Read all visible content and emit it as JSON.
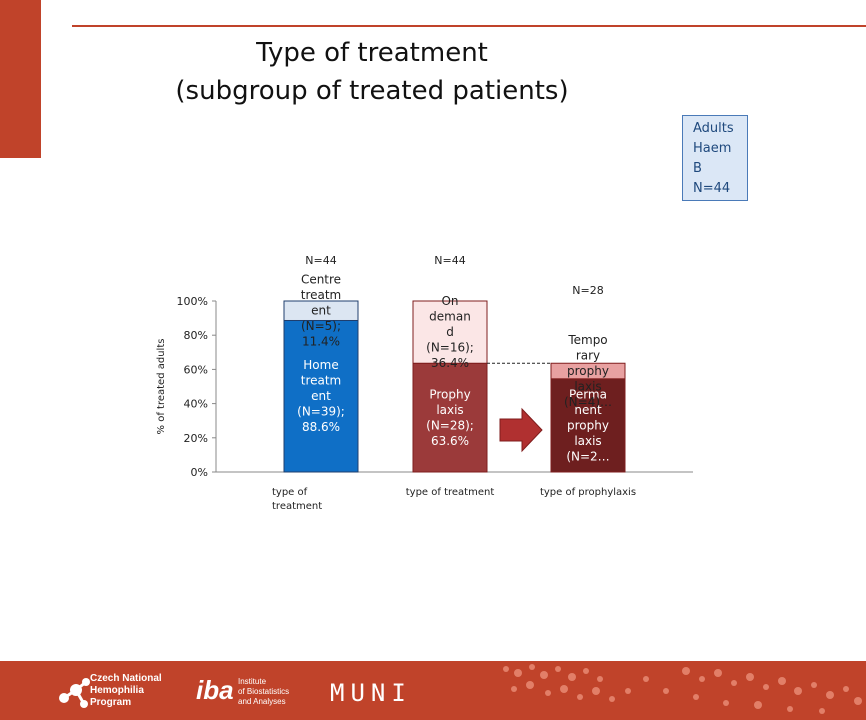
{
  "slide": {
    "title_line1": "Type of treatment",
    "title_line2": "(subgroup of treated patients)",
    "subgroup_box": [
      "Adults",
      "Haem",
      "B",
      "N=44"
    ]
  },
  "footer": {
    "logo1": [
      "Czech National",
      "Hemophilia",
      "Program"
    ],
    "logo2_mark": "iba",
    "logo2_text": [
      "Institute",
      "of Biostatistics",
      "and Analyses"
    ],
    "logo3": "MUNI"
  },
  "chart_data": {
    "type": "bar",
    "stacked": true,
    "ylabel": "% of treated adults",
    "ylim": [
      0,
      100
    ],
    "yticks": [
      "0%",
      "20%",
      "40%",
      "60%",
      "80%",
      "100%"
    ],
    "categories": [
      {
        "label": [
          "type of",
          "treatment"
        ],
        "n_label": "N=44"
      },
      {
        "label": [
          "type of treatment"
        ],
        "n_label": "N=44"
      },
      {
        "label": [
          "type of prophylaxis"
        ],
        "n_label": "N=28"
      }
    ],
    "segments": [
      {
        "category": 0,
        "name": "Home treatment",
        "n": 39,
        "value": 88.6,
        "label": [
          "Home",
          "treatm",
          "ent",
          "(N=39);",
          "88.6%"
        ],
        "color": "#0f6fc6"
      },
      {
        "category": 0,
        "name": "Centre treatment",
        "n": 5,
        "value": 11.4,
        "label": [
          "Centre",
          "treatm",
          "ent",
          "(N=5);",
          "11.4%"
        ],
        "color": "#dce6f2"
      },
      {
        "category": 1,
        "name": "Prophylaxis",
        "n": 28,
        "value": 63.6,
        "label": [
          "Prophy",
          "laxis",
          "(N=28);",
          "63.6%"
        ],
        "color": "#9b3a3a"
      },
      {
        "category": 1,
        "name": "On demand",
        "n": 16,
        "value": 36.4,
        "label": [
          "On",
          "deman",
          "d",
          "(N=16);",
          "36.4%"
        ],
        "color": "#fbe6e6"
      },
      {
        "category": 2,
        "name": "Permanent prophylaxis",
        "value": 54.5,
        "label": [
          "Perma",
          "nent",
          "prophy",
          "laxis",
          "(N=2…"
        ],
        "color": "#6e1f1f"
      },
      {
        "category": 2,
        "name": "Temporary prophylaxis",
        "value": 9.1,
        "label": [
          "Tempo",
          "rary",
          "prophy",
          "laxis",
          "(N=4)…"
        ],
        "color": "#e8a1a1"
      }
    ],
    "grid": false,
    "legend": "none"
  }
}
